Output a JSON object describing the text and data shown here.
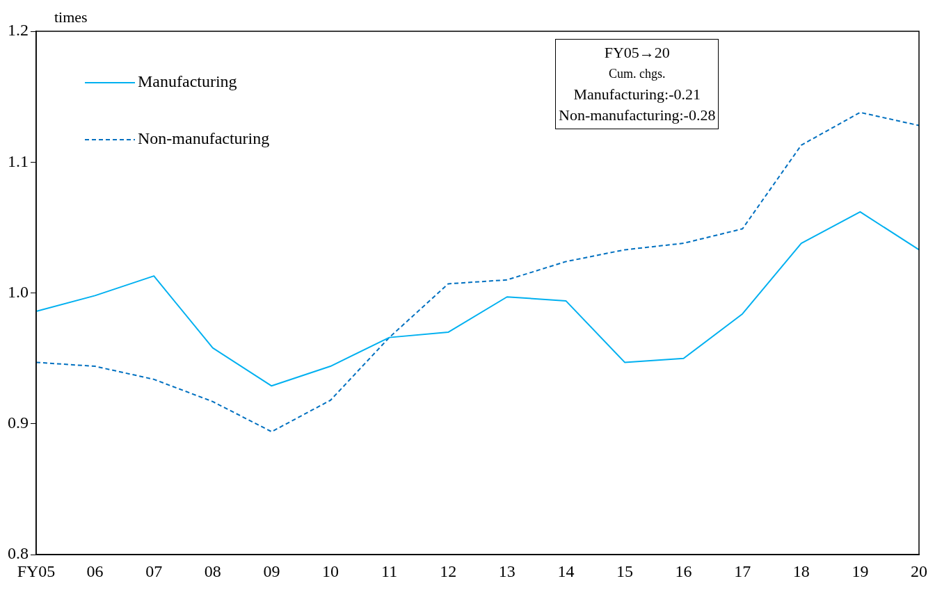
{
  "chart_data": {
    "type": "line",
    "ylabel": "times",
    "categories": [
      "FY05",
      "06",
      "07",
      "08",
      "09",
      "10",
      "11",
      "12",
      "13",
      "14",
      "15",
      "16",
      "17",
      "18",
      "19",
      "20"
    ],
    "series": [
      {
        "name": "Manufacturing",
        "color": "#00b0f0",
        "line_style": "solid",
        "values": [
          0.986,
          0.998,
          1.013,
          0.958,
          0.929,
          0.944,
          0.966,
          0.97,
          0.997,
          0.994,
          0.947,
          0.95,
          0.984,
          1.038,
          1.062,
          1.033
        ]
      },
      {
        "name": "Non-manufacturing",
        "color": "#0070c0",
        "line_style": "dashed",
        "values": [
          0.947,
          0.944,
          0.934,
          0.917,
          0.894,
          0.918,
          0.966,
          1.007,
          1.01,
          1.024,
          1.033,
          1.038,
          1.049,
          1.113,
          1.138,
          1.128
        ]
      }
    ],
    "ylim": [
      0.8,
      1.2
    ],
    "yticks": [
      {
        "value": 0.8,
        "label": "0.8"
      },
      {
        "value": 0.9,
        "label": "0.9"
      },
      {
        "value": 1.0,
        "label": "1.0"
      },
      {
        "value": 1.1,
        "label": "1.1"
      },
      {
        "value": 1.2,
        "label": "1.2"
      }
    ],
    "grid": false,
    "legend": "top left",
    "marker": "none",
    "annotations": [
      "FY05→20",
      "Cum. chgs.",
      "Manufacturing:-0.21",
      "Non-manufacturing:-0.28"
    ]
  }
}
